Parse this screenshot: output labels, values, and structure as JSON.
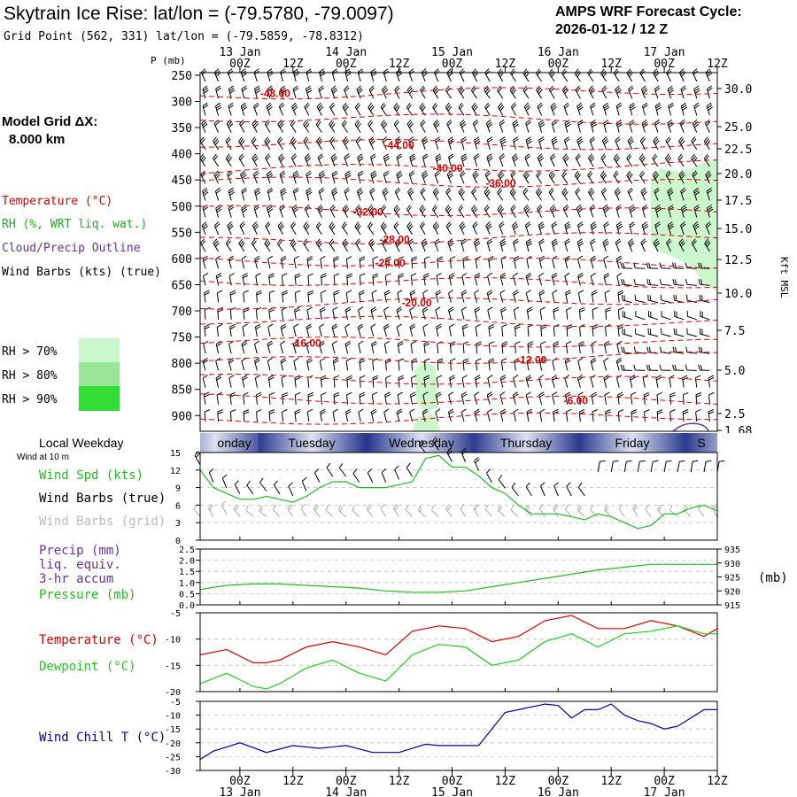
{
  "header": {
    "title": "Skytrain Ice Rise:  lat/lon = (-79.5780, -79.0097)",
    "subtitle": "Grid Point (562, 331) lat/lon = (-79.5859, -78.8312)",
    "cycle_label": "AMPS WRF Forecast Cycle:",
    "cycle_value": "2026-01-12 / 12  Z"
  },
  "time_axis": {
    "day_labels": [
      "13 Jan",
      "14 Jan",
      "15 Jan",
      "16 Jan",
      "17 Jan"
    ],
    "hour_labels": [
      "00Z",
      "12Z",
      "00Z",
      "12Z",
      "00Z",
      "12Z",
      "00Z",
      "12Z",
      "00Z",
      "12Z"
    ],
    "start_hours_before_first_00z": 9,
    "total_hours": 117
  },
  "left_legend": {
    "model_grid_label": "Model Grid ΔX:",
    "model_grid_value": "8.000 km",
    "temperature": "Temperature (°C)",
    "rh": "RH (%, WRT liq. wat.)",
    "cloud": "Cloud/Precip Outline",
    "wind_barbs": "Wind Barbs (kts) (true)",
    "rh70": "RH > 70%",
    "rh80": "RH > 80%",
    "rh90": "RH > 90%"
  },
  "colors": {
    "temperature": "#dd0000",
    "rh70": "#ccf6cc",
    "rh80": "#99e699",
    "rh90": "#33dd33",
    "cloud": "#663399",
    "wind_spd": "#22bb22",
    "pressure": "#22bb22",
    "dewpoint": "#22cc22",
    "wind_chill": "#0000aa",
    "grid_barbs": "#aaaaaa"
  },
  "chart_data": [
    {
      "type": "contour",
      "name": "vertical-cross-section",
      "yaxis_label": "P (mb)",
      "pressure_ticks": [
        250,
        300,
        350,
        400,
        450,
        500,
        550,
        600,
        650,
        700,
        750,
        800,
        850,
        900
      ],
      "right_axis_label": "Kft MSL",
      "height_ticks": [
        "30.0",
        "25.0",
        "22.5",
        "20.0",
        "17.5",
        "15.0",
        "12.5",
        "10.0",
        "7.5",
        "5.0",
        "2.5",
        "1.68"
      ],
      "temperature_labels": [
        {
          "text": "-48.00",
          "hour": 17,
          "pressure": 283
        },
        {
          "text": "-44.00",
          "hour": 45,
          "pressure": 382
        },
        {
          "text": "-40.00",
          "hour": 56,
          "pressure": 426
        },
        {
          "text": "-36.00",
          "hour": 68,
          "pressure": 455
        },
        {
          "text": "-32.00",
          "hour": 38,
          "pressure": 510
        },
        {
          "text": "-28.00",
          "hour": 44,
          "pressure": 562
        },
        {
          "text": "-24.00",
          "hour": 43,
          "pressure": 607
        },
        {
          "text": "-20.00",
          "hour": 49,
          "pressure": 683
        },
        {
          "text": "-16.00",
          "hour": 24,
          "pressure": 760
        },
        {
          "text": "-12.00",
          "hour": 75,
          "pressure": 792
        },
        {
          "text": "-6.00",
          "hour": 85,
          "pressure": 870
        }
      ],
      "isotherm_pressures": [
        283,
        333,
        382,
        426,
        455,
        510,
        562,
        607,
        645,
        683,
        720,
        760,
        792,
        832,
        870,
        905
      ]
    },
    {
      "type": "line",
      "name": "surface-wind",
      "local_weekday_label": "Local Weekday",
      "wind_height_label": "Wind at 10 m",
      "weekdays": [
        "Monday",
        "Tuesday",
        "Wednesday",
        "Thursday",
        "Friday",
        "Sat"
      ],
      "weekday_visible": [
        "onday",
        "Tuesday",
        "Wednesday",
        "Thursday",
        "Friday",
        "S"
      ],
      "series_labels": [
        "Wind Spd (kts)",
        "Wind Barbs (true)",
        "Wind Barbs (grid)"
      ],
      "yticks": [
        0,
        3,
        6,
        9,
        12,
        15
      ],
      "ylim": [
        0,
        15
      ],
      "hours": [
        0,
        3,
        6,
        9,
        12,
        15,
        18,
        21,
        24,
        27,
        30,
        33,
        36,
        39,
        42,
        45,
        48,
        51,
        54,
        57,
        60,
        63,
        66,
        69,
        72,
        75,
        78,
        81,
        84,
        87,
        90,
        93,
        96,
        99,
        102,
        105,
        108,
        111,
        114,
        117
      ],
      "wind_speed_kts": [
        12,
        9,
        8,
        7,
        7,
        7.5,
        7,
        6.5,
        7.5,
        9,
        10,
        10,
        9,
        9,
        9,
        9.5,
        10,
        14,
        14.5,
        12.5,
        12.5,
        11,
        9,
        8,
        6,
        4.5,
        4.5,
        4.5,
        4,
        3.5,
        4.5,
        4,
        3,
        2,
        2.5,
        4.5,
        4.5,
        5.5,
        6,
        5
      ],
      "grid_barb_level_kts": [
        4,
        4,
        4.5,
        4,
        4,
        4,
        4,
        4,
        4,
        4,
        4,
        4,
        4,
        4,
        4,
        4,
        4,
        4,
        4,
        4,
        4,
        4,
        4,
        4,
        4,
        4,
        4,
        4,
        4,
        4,
        4,
        4,
        4,
        4,
        4,
        4,
        4,
        4,
        4,
        4
      ]
    },
    {
      "type": "line",
      "name": "precip-pressure",
      "series_labels": [
        "Precip (mm)",
        "liq. equiv.",
        "3-hr accum",
        "Pressure (mb)"
      ],
      "left_yticks": [
        "0.0",
        "0.5",
        "1.0",
        "1.5",
        "2.0",
        "2.5"
      ],
      "precip_ylim": [
        0,
        2.5
      ],
      "right_yticks": [
        "935",
        "930",
        "925",
        "920",
        "915"
      ],
      "right_axis_unit": "(mb)",
      "pressure_ylim": [
        915,
        935
      ],
      "hours": [
        0,
        6,
        12,
        18,
        24,
        30,
        36,
        42,
        48,
        54,
        60,
        66,
        72,
        78,
        84,
        90,
        96,
        102,
        108,
        114,
        117
      ],
      "pressure_mb": [
        920.5,
        922,
        922.5,
        922.5,
        922,
        921.5,
        921,
        920,
        919.5,
        919.5,
        920,
        921.5,
        923,
        924.5,
        926,
        927.5,
        928.5,
        929.5,
        929.5,
        929.5,
        929.5
      ],
      "precip_mm": [
        0,
        0,
        0,
        0,
        0,
        0,
        0,
        0,
        0,
        0,
        0,
        0,
        0,
        0,
        0,
        0,
        0,
        0,
        0,
        0,
        0
      ]
    },
    {
      "type": "line",
      "name": "temperature-dewpoint",
      "series_labels": [
        "Temperature (°C)",
        "Dewpoint (°C)"
      ],
      "yticks": [
        "-5",
        "-10",
        "-15",
        "-20"
      ],
      "ylim": [
        -20,
        -5
      ],
      "hours": [
        0,
        6,
        12,
        15,
        18,
        24,
        30,
        36,
        42,
        48,
        54,
        60,
        66,
        72,
        78,
        84,
        90,
        96,
        102,
        108,
        114,
        117
      ],
      "temperature": [
        -13,
        -12,
        -14.5,
        -14.5,
        -14,
        -11.5,
        -10.5,
        -11.5,
        -13,
        -8.5,
        -7.5,
        -8,
        -10.5,
        -9.5,
        -6.5,
        -5.5,
        -8,
        -8,
        -6.5,
        -7.5,
        -9.5,
        -8
      ],
      "dewpoint": [
        -18.5,
        -16.5,
        -19,
        -19.5,
        -18.5,
        -15.5,
        -14,
        -16.5,
        -18,
        -13,
        -11,
        -11.5,
        -15,
        -14,
        -10.5,
        -9,
        -11.5,
        -9,
        -8.5,
        -7.5,
        -9,
        -9
      ]
    },
    {
      "type": "line",
      "name": "wind-chill",
      "series_labels": [
        "Wind Chill T (°C)"
      ],
      "yticks": [
        "-5",
        "-10",
        "-15",
        "-20",
        "-25",
        "-30"
      ],
      "ylim": [
        -30,
        -5
      ],
      "hours": [
        0,
        3,
        9,
        15,
        21,
        27,
        33,
        39,
        45,
        51,
        54,
        57,
        63,
        69,
        72,
        78,
        81,
        84,
        87,
        90,
        93,
        96,
        99,
        102,
        105,
        108,
        111,
        114,
        117
      ],
      "wind_chill": [
        -26,
        -23,
        -20,
        -23.5,
        -21,
        -22,
        -21,
        -23.5,
        -23.5,
        -20.5,
        -21,
        -21,
        -21,
        -9,
        -8,
        -6,
        -6.5,
        -11,
        -8,
        -8,
        -6,
        -10,
        -12,
        -13,
        -15,
        -14,
        -11,
        -8,
        -8
      ]
    }
  ],
  "footer": {
    "hour_labels": [
      "00Z",
      "12Z",
      "00Z",
      "12Z",
      "00Z",
      "12Z",
      "00Z",
      "12Z",
      "00Z",
      "12Z"
    ],
    "day_labels": [
      "13 Jan",
      "14 Jan",
      "15 Jan",
      "16 Jan",
      "17 Jan"
    ]
  }
}
